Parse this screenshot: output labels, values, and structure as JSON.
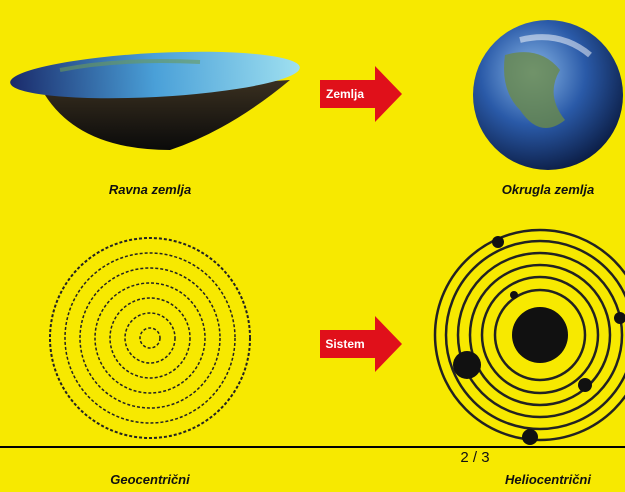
{
  "slide": {
    "arrows": [
      {
        "label": "Zemlja"
      },
      {
        "label": "Sistem"
      }
    ],
    "captions": [
      "Ravna zemlja",
      "Okrugla zemlja",
      "Geocentrični",
      "Heliocentrični"
    ],
    "page_indicator": "2 / 3"
  }
}
